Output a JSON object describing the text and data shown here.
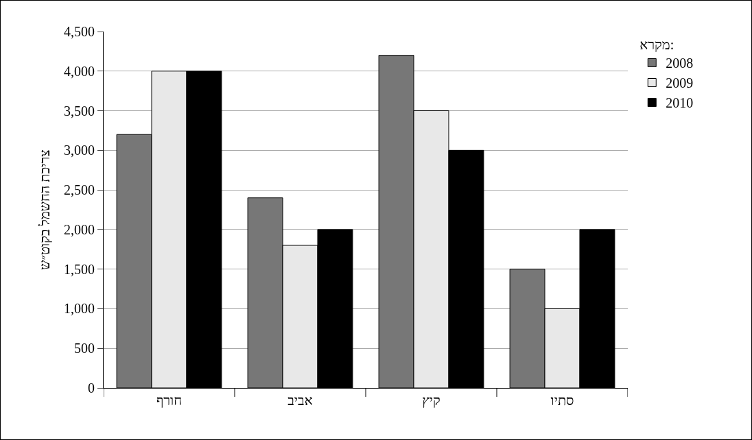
{
  "chart_data": {
    "type": "bar",
    "ylabel": "צריכת החשמל בקוט״ש",
    "legend_title": "מקרא:",
    "categories": [
      "חורף",
      "אביב",
      "קיץ",
      "סתיו"
    ],
    "series": [
      {
        "name": "2008",
        "color": "#777777",
        "values": [
          3200,
          2400,
          4200,
          1500
        ]
      },
      {
        "name": "2009",
        "color": "#e8e8e8",
        "values": [
          4000,
          1800,
          3500,
          1000
        ]
      },
      {
        "name": "2010",
        "color": "#000000",
        "values": [
          4000,
          2000,
          3000,
          2000
        ]
      }
    ],
    "ylim": [
      0,
      4500
    ],
    "yticks": [
      {
        "value": 0,
        "label": "0"
      },
      {
        "value": 500,
        "label": "500"
      },
      {
        "value": 1000,
        "label": "1,000"
      },
      {
        "value": 1500,
        "label": "1,500"
      },
      {
        "value": 2000,
        "label": "2,000"
      },
      {
        "value": 2500,
        "label": "2,500"
      },
      {
        "value": 3000,
        "label": "3,000"
      },
      {
        "value": 3500,
        "label": "3,500"
      },
      {
        "value": 4000,
        "label": "4,000"
      },
      {
        "value": 4500,
        "label": "4,500"
      }
    ],
    "grid": "y",
    "legend": "top right"
  }
}
